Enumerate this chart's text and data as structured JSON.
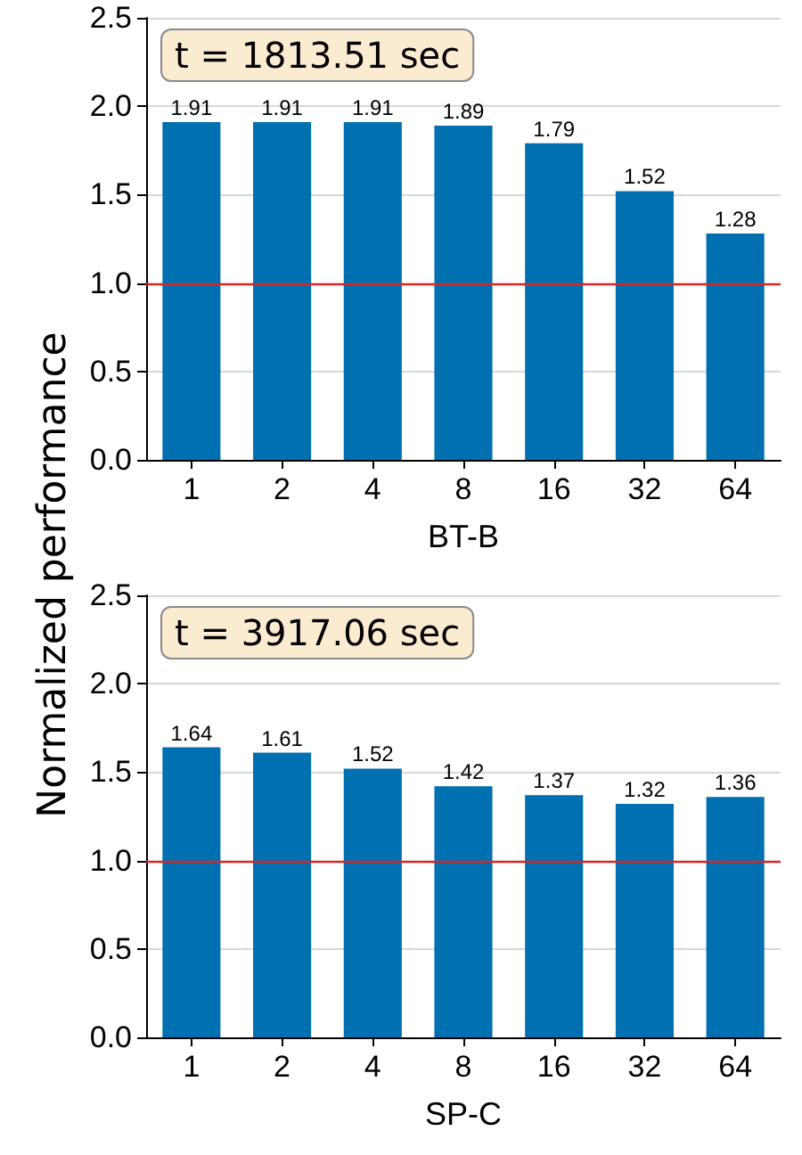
{
  "chart_data": [
    {
      "type": "bar",
      "xlabel": "BT-B",
      "ylabel": "Normalized performance",
      "categories": [
        "1",
        "2",
        "4",
        "8",
        "16",
        "32",
        "64"
      ],
      "values": [
        1.91,
        1.91,
        1.91,
        1.89,
        1.79,
        1.52,
        1.28
      ],
      "color": "#0070b0",
      "data_labels": true,
      "ylim": [
        0,
        2.5
      ],
      "yticks": [
        {
          "value": 0,
          "label": "0.0"
        },
        0.5,
        {
          "value": 1,
          "label": "1.0"
        },
        1.5,
        {
          "value": 2,
          "label": "2.0"
        },
        2.5
      ],
      "grid": "y",
      "ref_lines": [
        {
          "axis": "y",
          "value": 1,
          "color": "#d62728"
        }
      ],
      "annotations": [
        "t = 1813.51 sec"
      ]
    },
    {
      "type": "bar",
      "xlabel": "SP-C",
      "categories": [
        "1",
        "2",
        "4",
        "8",
        "16",
        "32",
        "64"
      ],
      "values": [
        1.64,
        1.61,
        1.52,
        1.42,
        1.37,
        1.32,
        1.36
      ],
      "color": "#0070b0",
      "data_labels": true,
      "ylim": [
        0,
        2.5
      ],
      "yticks": [
        {
          "value": 0,
          "label": "0.0"
        },
        0.5,
        {
          "value": 1,
          "label": "1.0"
        },
        1.5,
        {
          "value": 2,
          "label": "2.0"
        },
        2.5
      ],
      "grid": "y",
      "ref_lines": [
        {
          "axis": "y",
          "value": 1,
          "color": "#d62728"
        }
      ],
      "annotations": [
        "t = 3917.06 sec"
      ]
    }
  ]
}
